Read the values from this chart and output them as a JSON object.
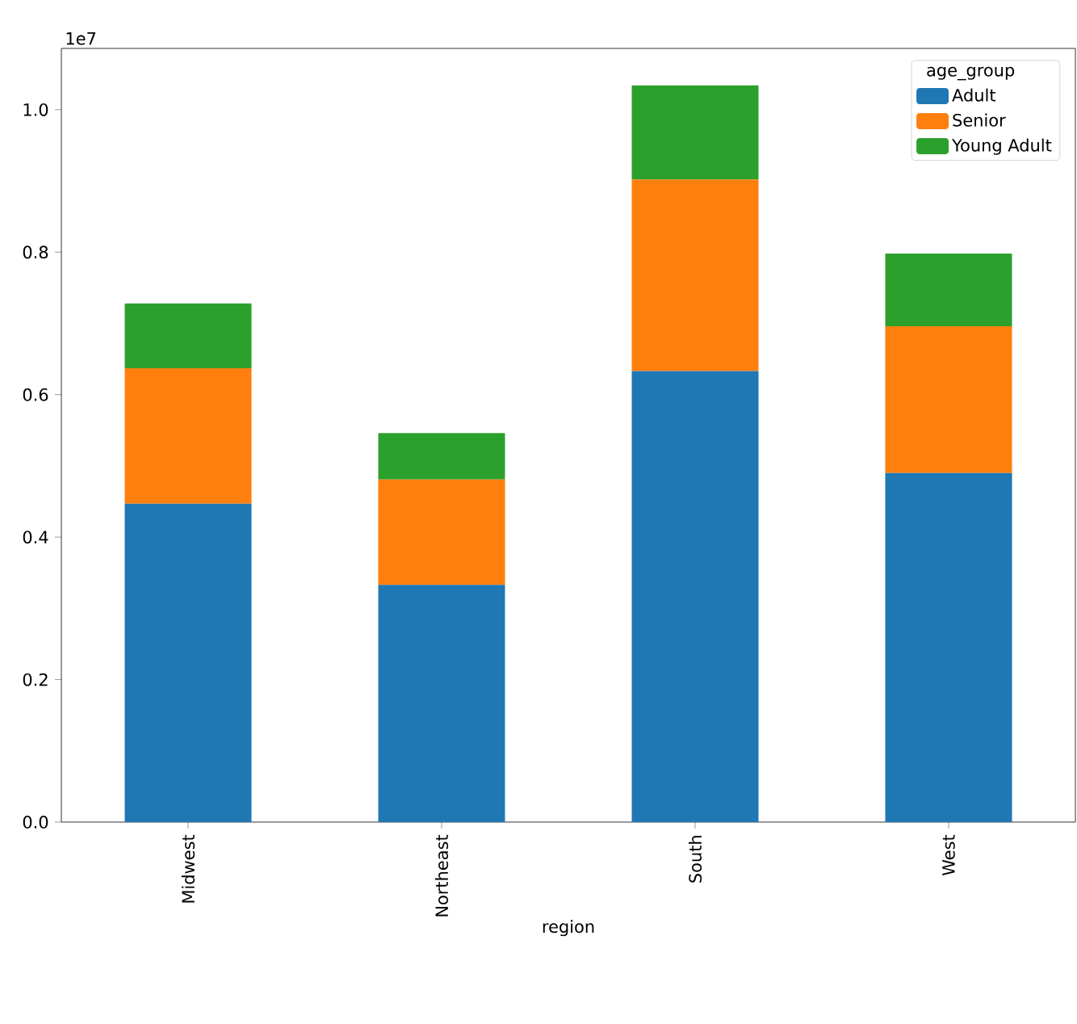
{
  "chart_data": {
    "type": "bar",
    "stacked": true,
    "xlabel": "region",
    "legend_title": "age_group",
    "legend": "top right",
    "grid": false,
    "categories": [
      "Midwest",
      "Northeast",
      "South",
      "West"
    ],
    "series": [
      {
        "name": "Adult",
        "color": "#1f77b4",
        "values": [
          0.447,
          0.333,
          0.633,
          0.49
        ]
      },
      {
        "name": "Senior",
        "color": "#ff7f0e",
        "values": [
          0.19,
          0.148,
          0.269,
          0.206
        ]
      },
      {
        "name": "Young Adult",
        "color": "#2ca02c",
        "values": [
          0.091,
          0.065,
          0.132,
          0.102
        ]
      }
    ],
    "ylim": [
      0,
      1.086
    ],
    "yticks": [
      {
        "value": 0,
        "label": "0.0"
      },
      0.2,
      0.4,
      0.6,
      0.8,
      {
        "value": 1,
        "label": "1.0"
      }
    ],
    "annotations": [
      "1e7"
    ]
  }
}
